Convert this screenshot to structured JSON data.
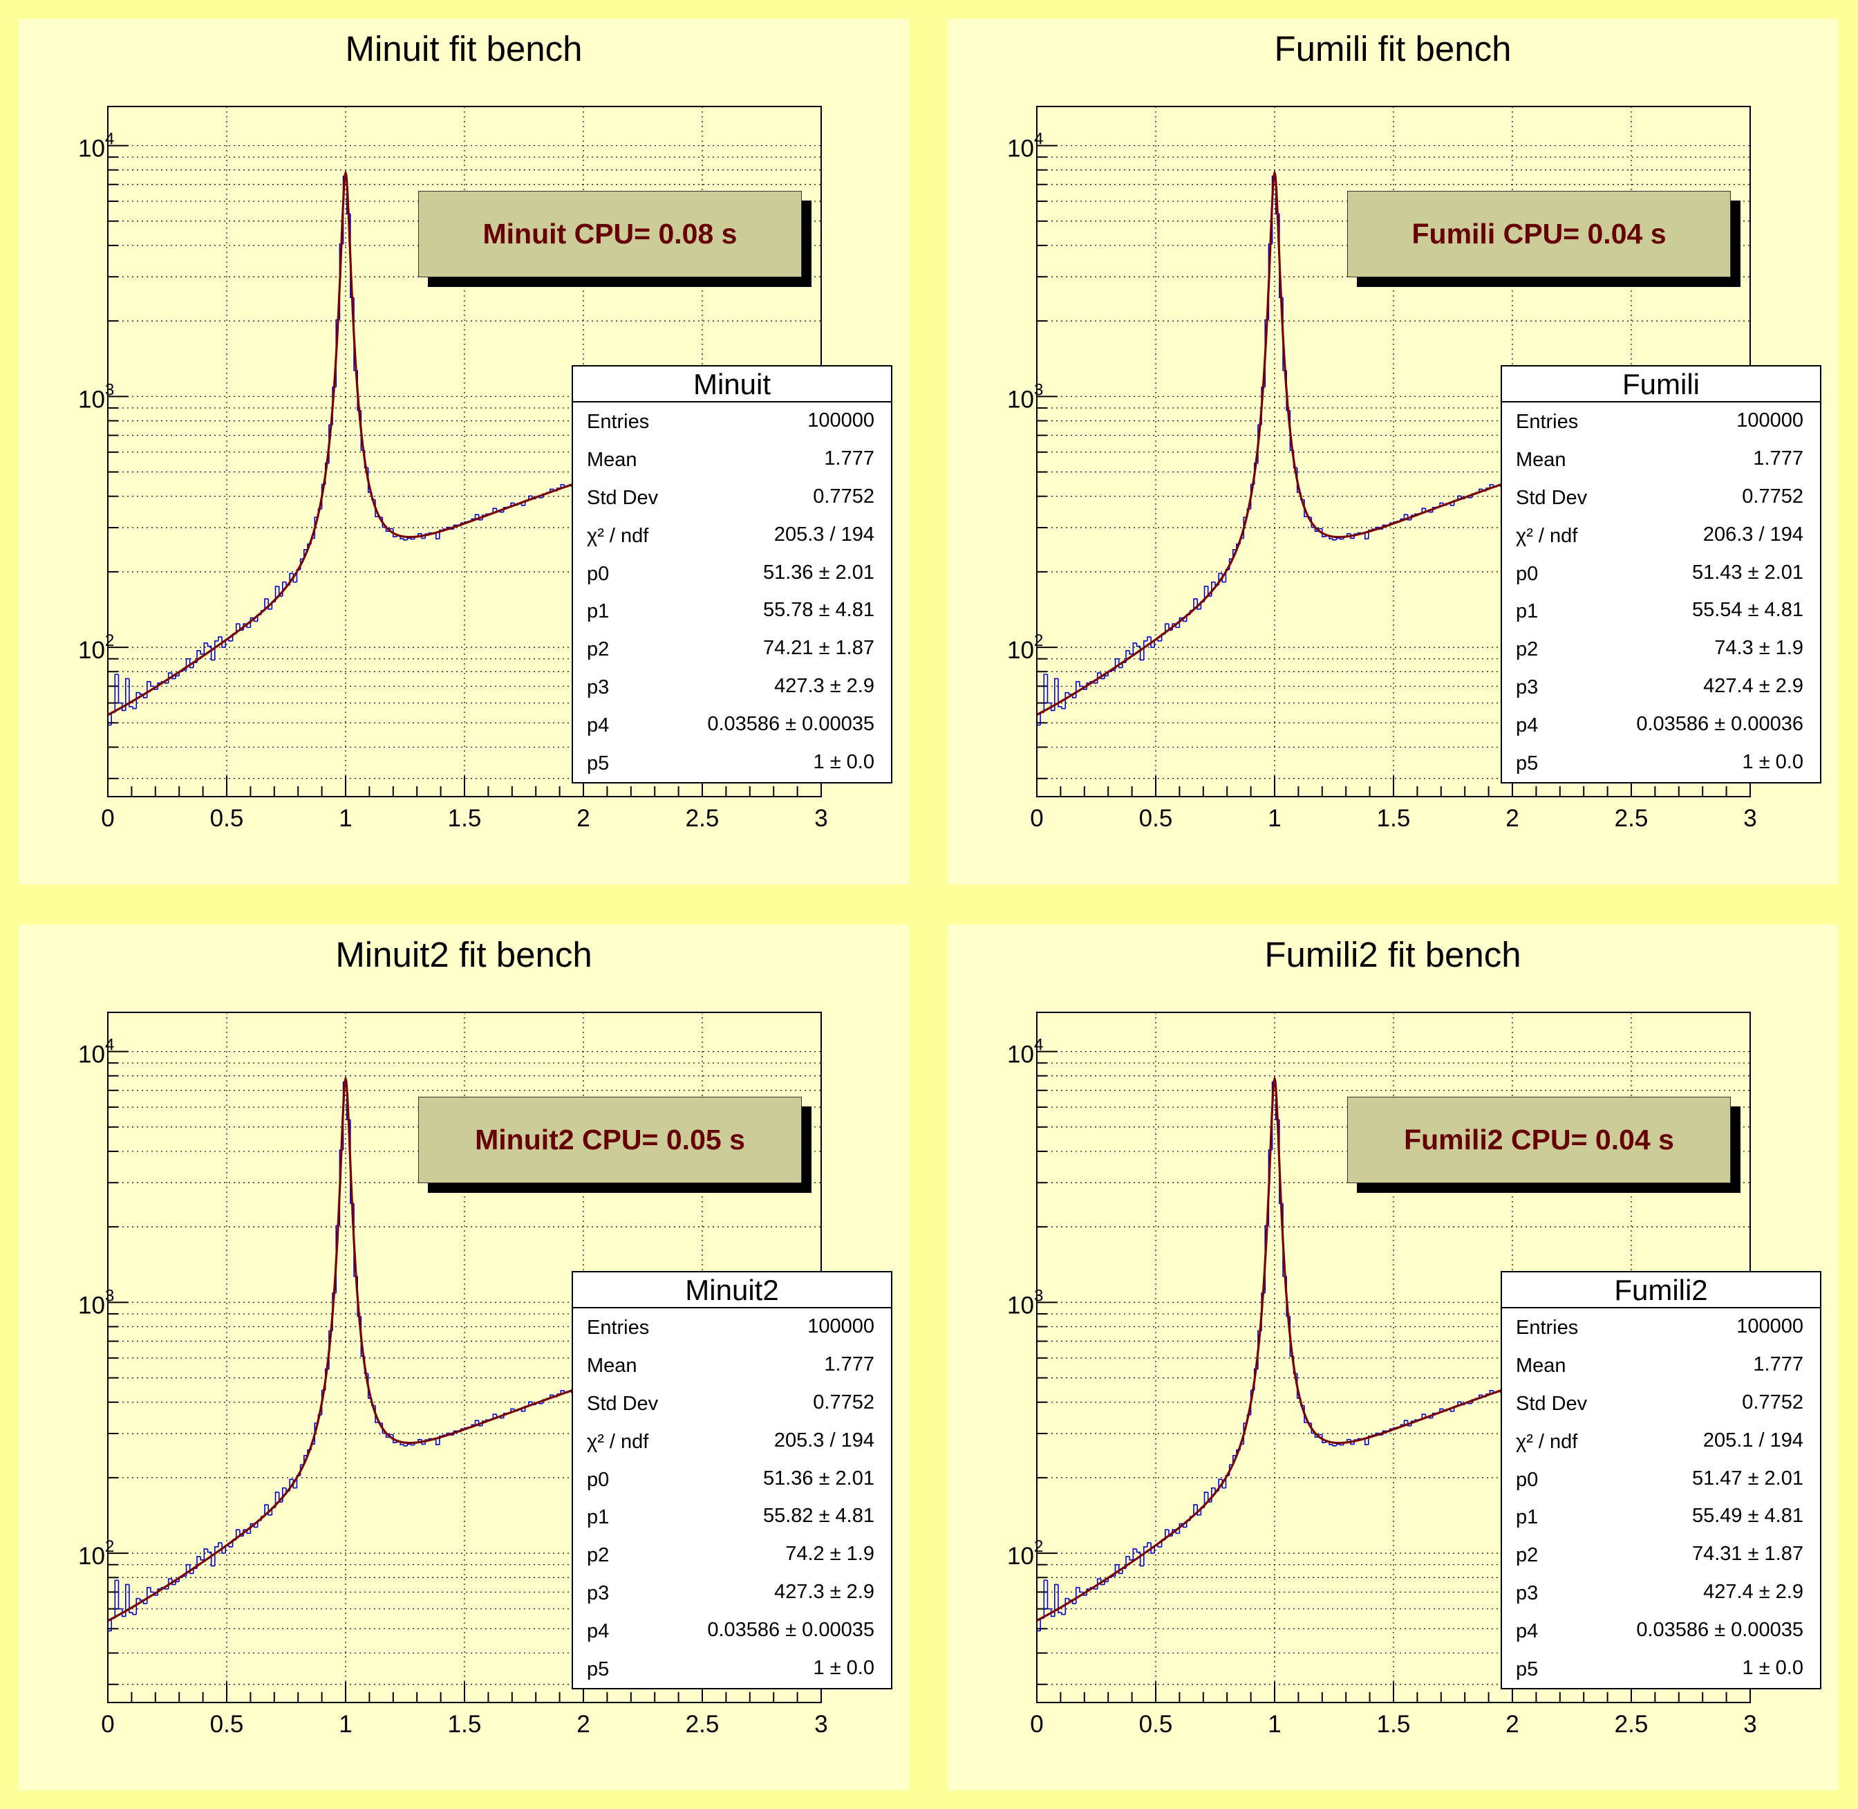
{
  "panels": [
    {
      "title": "Minuit fit bench",
      "cpu_label": "Minuit CPU= 0.08 s",
      "stats": {
        "title": "Minuit",
        "rows": [
          {
            "label": "Entries",
            "value": "100000"
          },
          {
            "label": "Mean",
            "value": "1.777"
          },
          {
            "label": "Std Dev",
            "value": "0.7752"
          },
          {
            "label": "χ² / ndf",
            "value": "205.3 / 194"
          },
          {
            "label": "p0",
            "value": "51.36  ± 2.01"
          },
          {
            "label": "p1",
            "value": "55.78  ± 4.81"
          },
          {
            "label": "p2",
            "value": "74.21 ± 1.87"
          },
          {
            "label": "p3",
            "value": "427.3  ± 2.9"
          },
          {
            "label": "p4",
            "value": "0.03586  ± 0.00035"
          },
          {
            "label": "p5",
            "value": "1 ± 0.0"
          }
        ]
      }
    },
    {
      "title": "Fumili fit bench",
      "cpu_label": "Fumili CPU= 0.04 s",
      "stats": {
        "title": "Fumili",
        "rows": [
          {
            "label": "Entries",
            "value": "100000"
          },
          {
            "label": "Mean",
            "value": "1.777"
          },
          {
            "label": "Std Dev",
            "value": "0.7752"
          },
          {
            "label": "χ² / ndf",
            "value": "206.3 / 194"
          },
          {
            "label": "p0",
            "value": "51.43  ± 2.01"
          },
          {
            "label": "p1",
            "value": "55.54  ± 4.81"
          },
          {
            "label": "p2",
            "value": "74.3 ± 1.9"
          },
          {
            "label": "p3",
            "value": "427.4  ± 2.9"
          },
          {
            "label": "p4",
            "value": "0.03586  ± 0.00036"
          },
          {
            "label": "p5",
            "value": "1 ± 0.0"
          }
        ]
      }
    },
    {
      "title": "Minuit2 fit bench",
      "cpu_label": "Minuit2 CPU= 0.05 s",
      "stats": {
        "title": "Minuit2",
        "rows": [
          {
            "label": "Entries",
            "value": "100000"
          },
          {
            "label": "Mean",
            "value": "1.777"
          },
          {
            "label": "Std Dev",
            "value": "0.7752"
          },
          {
            "label": "χ² / ndf",
            "value": "205.3 / 194"
          },
          {
            "label": "p0",
            "value": "51.36  ± 2.01"
          },
          {
            "label": "p1",
            "value": "55.82  ± 4.81"
          },
          {
            "label": "p2",
            "value": "74.2  ± 1.9"
          },
          {
            "label": "p3",
            "value": "427.3  ± 2.9"
          },
          {
            "label": "p4",
            "value": "0.03586  ± 0.00035"
          },
          {
            "label": "p5",
            "value": "1 ± 0.0"
          }
        ]
      }
    },
    {
      "title": "Fumili2 fit bench",
      "cpu_label": "Fumili2 CPU= 0.04 s",
      "stats": {
        "title": "Fumili2",
        "rows": [
          {
            "label": "Entries",
            "value": "100000"
          },
          {
            "label": "Mean",
            "value": "1.777"
          },
          {
            "label": "Std Dev",
            "value": "0.7752"
          },
          {
            "label": "χ² / ndf",
            "value": "205.1 / 194"
          },
          {
            "label": "p0",
            "value": "51.47  ± 2.01"
          },
          {
            "label": "p1",
            "value": "55.49  ± 4.81"
          },
          {
            "label": "p2",
            "value": "74.31 ± 1.87"
          },
          {
            "label": "p3",
            "value": "427.4  ± 2.9"
          },
          {
            "label": "p4",
            "value": "0.03586  ± 0.00035"
          },
          {
            "label": "p5",
            "value": "1 ± 0.0"
          }
        ]
      }
    }
  ],
  "chart_data": {
    "type": "histogram",
    "yscale": "log",
    "xlim": [
      0,
      3
    ],
    "ylim": [
      25.4,
      14320
    ],
    "grid": true,
    "bins": {
      "n": 200,
      "xmin": 0,
      "xmax": 3
    },
    "x_tick_labels": [
      "0",
      "0.5",
      "1",
      "1.5",
      "2",
      "2.5",
      "3"
    ],
    "x_tick_values": [
      0,
      0.5,
      1,
      1.5,
      2,
      2.5,
      3
    ],
    "y_ticks": [
      {
        "base": "10",
        "exp": "2",
        "value": 100
      },
      {
        "base": "10",
        "exp": "3",
        "value": 1000
      },
      {
        "base": "10",
        "exp": "4",
        "value": 10000
      }
    ],
    "fit_function": "p0 + p1*x + p2*x^2 + (0.5*p3*p4/pi)/((x-p5)^2 + 0.25*p4^2)",
    "fits": [
      [
        51.36,
        55.78,
        74.21,
        427.3,
        0.03586,
        1
      ],
      [
        51.43,
        55.54,
        74.3,
        427.4,
        0.03586,
        1
      ],
      [
        51.36,
        55.82,
        74.2,
        427.3,
        0.03586,
        1
      ],
      [
        51.47,
        55.49,
        74.31,
        427.4,
        0.03586,
        1
      ]
    ],
    "colors": {
      "histogram": "#0000cc",
      "fit": "#7a0000",
      "cpu_text": "#660000",
      "cpu_box": "#cccc99",
      "panel": "#ffffcc",
      "canvas": "#ffff99"
    },
    "values": [
      49,
      55,
      78,
      60,
      56,
      75,
      58,
      57,
      66,
      65,
      63,
      73,
      70,
      68,
      72,
      73,
      72,
      79,
      75,
      77,
      80,
      81,
      90,
      83,
      87,
      97,
      94,
      104,
      101,
      89,
      106,
      110,
      100,
      107,
      106,
      113,
      124,
      117,
      124,
      120,
      131,
      127,
      135,
      140,
      156,
      142,
      152,
      175,
      160,
      182,
      177,
      197,
      182,
      204,
      225,
      245,
      258,
      272,
      330,
      356,
      446,
      542,
      770,
      1090,
      2020,
      4050,
      7550,
      5350,
      2480,
      1270,
      880,
      610,
      520,
      415,
      388,
      332,
      330,
      301,
      290,
      297,
      276,
      278,
      271,
      268,
      272,
      270,
      276,
      284,
      272,
      283,
      286,
      284,
      271,
      293,
      296,
      301,
      296,
      307,
      305,
      313,
      316,
      318,
      325,
      338,
      322,
      336,
      340,
      341,
      358,
      349,
      346,
      361,
      362,
      376,
      369,
      374,
      368,
      385,
      401,
      391,
      398,
      395,
      409,
      414,
      427,
      420,
      431,
      445,
      436,
      441,
      438,
      455,
      460,
      459,
      478,
      472,
      482,
      496,
      488,
      497,
      490,
      509,
      518,
      526,
      520,
      533,
      531,
      548,
      541,
      560,
      552,
      567,
      575,
      569,
      590,
      584,
      598,
      594,
      611,
      607,
      625,
      619,
      637,
      633,
      650,
      644,
      661,
      658,
      673,
      670,
      690,
      683,
      699,
      694,
      716,
      709,
      726,
      722,
      741,
      737,
      752,
      749,
      769,
      762,
      781,
      777,
      796,
      790,
      811,
      805,
      824,
      820,
      840,
      832,
      853,
      845,
      869,
      862,
      884,
      877
    ]
  }
}
